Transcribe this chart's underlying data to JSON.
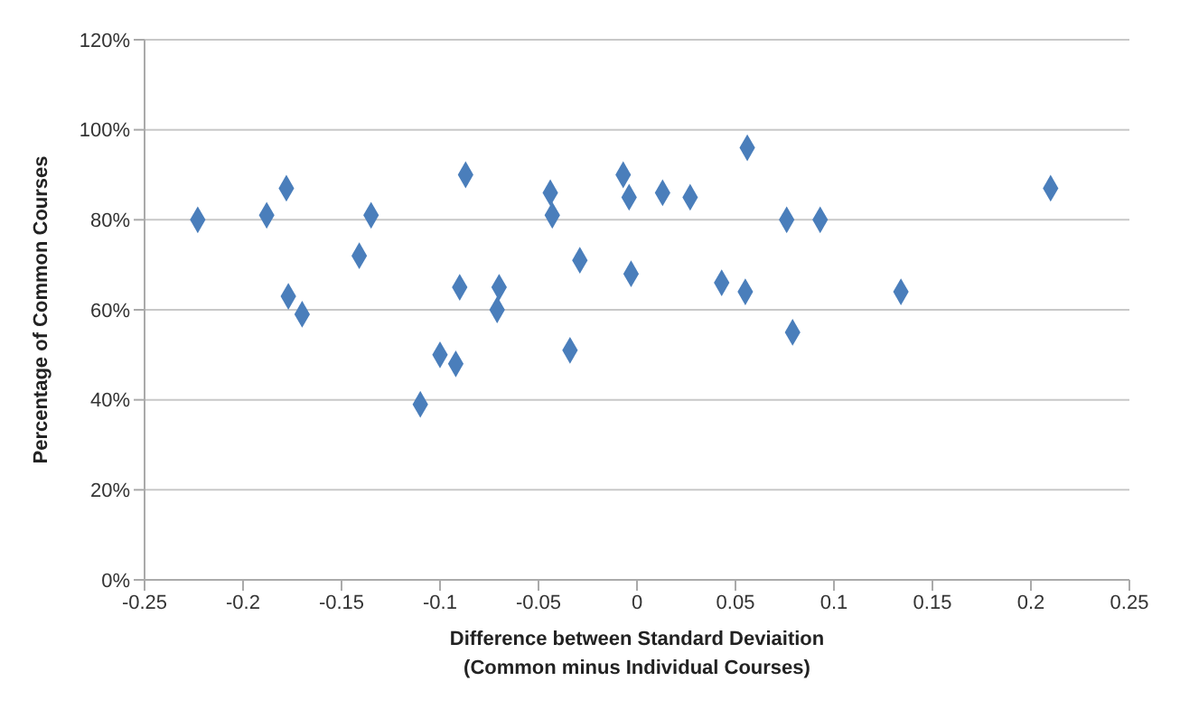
{
  "chart_data": {
    "type": "scatter",
    "xlabel": "Difference between Standard Deviaition\n(Common minus Individual Courses)",
    "ylabel": "Percentage of Common Courses",
    "x": [
      -0.223,
      -0.188,
      -0.178,
      -0.177,
      -0.17,
      -0.135,
      -0.141,
      -0.087,
      -0.09,
      -0.07,
      -0.071,
      -0.1,
      -0.092,
      -0.11,
      -0.044,
      -0.043,
      -0.029,
      -0.034,
      -0.007,
      -0.004,
      -0.003,
      0.056,
      0.013,
      0.027,
      0.076,
      0.093,
      0.043,
      0.055,
      0.079,
      0.134,
      0.21
    ],
    "series": [
      {
        "color": "#4a7ebb",
        "values": [
          80,
          81,
          87,
          63,
          59,
          81,
          72,
          90,
          65,
          65,
          60,
          50,
          48,
          39,
          86,
          81,
          71,
          51,
          90,
          85,
          68,
          96,
          86,
          85,
          80,
          80,
          66,
          64,
          55,
          64,
          87
        ]
      }
    ],
    "xlim": [
      -0.25,
      0.25
    ],
    "xticks": [
      -0.25,
      -0.2,
      -0.15,
      -0.1,
      -0.05,
      0,
      0.05,
      0.1,
      0.15,
      0.2,
      0.25
    ],
    "ylim": [
      0,
      120
    ],
    "yticks": [
      {
        "value": 0,
        "label": "0%"
      },
      {
        "value": 20,
        "label": "20%"
      },
      {
        "value": 40,
        "label": "40%"
      },
      {
        "value": 60,
        "label": "60%"
      },
      {
        "value": 80,
        "label": "80%"
      },
      {
        "value": 100,
        "label": "100%"
      },
      {
        "value": 120,
        "label": "120%"
      }
    ],
    "grid": "y",
    "marker": "diamond",
    "legend": false
  }
}
